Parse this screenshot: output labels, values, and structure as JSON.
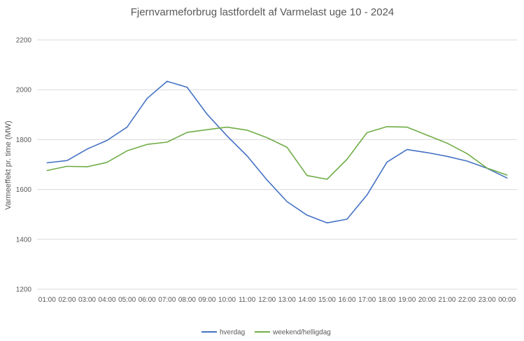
{
  "chart_data": {
    "type": "line",
    "title": "Fjernvarmeforbrug lastfordelt af Varmelast uge 10 - 2024",
    "xlabel": "",
    "ylabel": "Varmeeffekt pr. time (MW)",
    "ylim": [
      1200,
      2200
    ],
    "yticks": [
      1200,
      1400,
      1600,
      1800,
      2000,
      2200
    ],
    "grid": true,
    "legend_position": "bottom",
    "categories": [
      "01:00",
      "02:00",
      "03:00",
      "04:00",
      "05:00",
      "06:00",
      "07:00",
      "08:00",
      "09:00",
      "10:00",
      "11:00",
      "12:00",
      "13:00",
      "14:00",
      "15:00",
      "16:00",
      "17:00",
      "18:00",
      "19:00",
      "20:00",
      "21:00",
      "22:00",
      "23:00",
      "00:00"
    ],
    "series": [
      {
        "name": "hverdag",
        "color": "#4472c4",
        "values": [
          1707,
          1716,
          1762,
          1797,
          1850,
          1965,
          2034,
          2010,
          1902,
          1815,
          1735,
          1638,
          1551,
          1497,
          1466,
          1481,
          1578,
          1710,
          1760,
          1748,
          1733,
          1714,
          1685,
          1646
        ]
      },
      {
        "name": "weekend/helligdag",
        "color": "#70ad47",
        "values": [
          1676,
          1693,
          1691,
          1709,
          1755,
          1781,
          1790,
          1829,
          1840,
          1850,
          1838,
          1808,
          1769,
          1656,
          1641,
          1721,
          1828,
          1852,
          1850,
          1818,
          1786,
          1744,
          1686,
          1658
        ]
      }
    ]
  }
}
